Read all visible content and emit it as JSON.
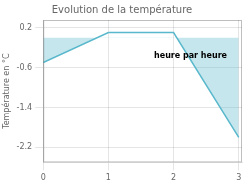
{
  "chart_data": {
    "type": "area",
    "title": "Evolution de la température",
    "ylabel": "Température en °C",
    "x": [
      0,
      1,
      2,
      3
    ],
    "values": [
      -0.5,
      0.1,
      0.1,
      -2.0
    ],
    "color": "#5ab8cc",
    "xlim": [
      0,
      3.05
    ],
    "xticks": [
      0,
      1,
      2,
      3
    ],
    "ylim": [
      -2.5,
      0.35
    ],
    "yticks": [
      0.2,
      -0.6,
      -1.4,
      -2.2
    ],
    "grid": true,
    "annotations": [
      {
        "text": "heure par heure",
        "x": 1.7,
        "y": -0.28
      }
    ]
  }
}
